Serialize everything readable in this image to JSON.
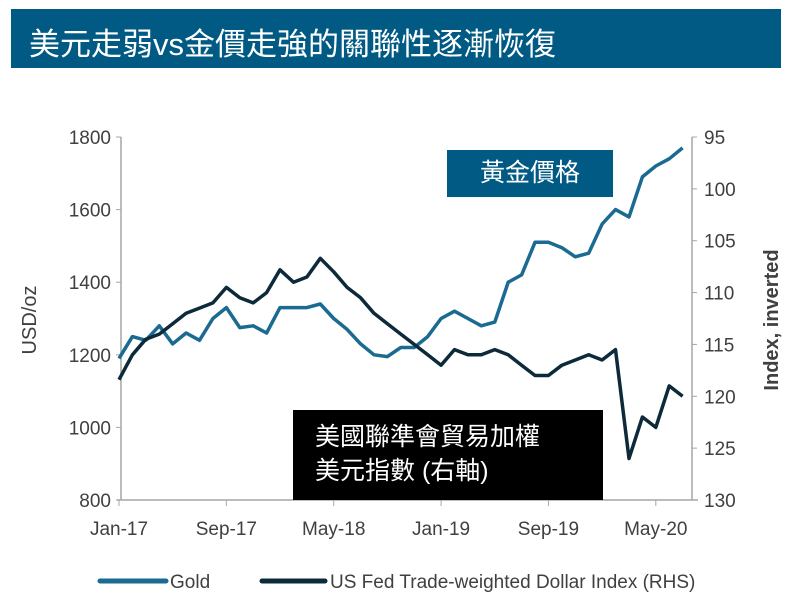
{
  "title": "美元走弱vs金價走強的關聯性逐漸恢復",
  "chart_data": {
    "type": "line",
    "xlabel": "",
    "ylabel": "USD/oz",
    "y2label": "Index, inverted",
    "x_ticks": [
      "Jan-17",
      "Sep-17",
      "May-18",
      "Jan-19",
      "Sep-19",
      "May-20"
    ],
    "y_ticks": [
      "800",
      "1000",
      "1200",
      "1400",
      "1600",
      "1800"
    ],
    "y2_ticks": [
      "95",
      "100",
      "105",
      "110",
      "115",
      "120",
      "125",
      "130"
    ],
    "ylim": [
      800,
      1800
    ],
    "y2lim": [
      130,
      95
    ],
    "y2_inverted": true,
    "x_start": "Jan-2017",
    "x_step": "month",
    "series": [
      {
        "name": "Gold",
        "axis": "left",
        "color": "#1a6a91",
        "values": [
          1190,
          1250,
          1240,
          1280,
          1230,
          1260,
          1240,
          1300,
          1330,
          1275,
          1280,
          1260,
          1330,
          1330,
          1330,
          1340,
          1300,
          1270,
          1230,
          1200,
          1195,
          1220,
          1220,
          1250,
          1300,
          1320,
          1300,
          1280,
          1290,
          1400,
          1420,
          1510,
          1510,
          1495,
          1470,
          1480,
          1560,
          1600,
          1580,
          1690,
          1720,
          1740,
          1770
        ]
      },
      {
        "name": "US Fed Trade-weighted Dollar Index (RHS)",
        "axis": "right",
        "color": "#0d2a3a",
        "values": [
          118.4,
          116,
          114.5,
          114,
          113,
          112,
          111.5,
          111,
          109.5,
          110.5,
          111,
          110,
          107.8,
          109,
          108.5,
          106.7,
          108,
          109.5,
          110.5,
          112,
          113,
          114,
          115,
          116,
          117,
          115.5,
          116,
          116,
          115.5,
          116,
          117,
          118,
          118,
          117,
          116.5,
          116,
          116.5,
          115.5,
          126,
          122,
          123,
          119,
          120
        ]
      }
    ],
    "legend": "bottom",
    "annotations": [
      "黃金價格",
      "美國聯準會貿易加權",
      "美元指數 (右軸)"
    ]
  },
  "colors": {
    "title_bg": "#005a83",
    "gold": "#1a6a91",
    "dollar": "#0d2a3a"
  }
}
